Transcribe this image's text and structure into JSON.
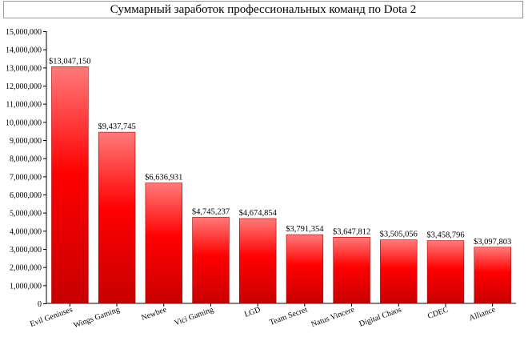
{
  "chart_data": {
    "type": "bar",
    "title": "Суммарный заработок профессиональных команд по Dota 2",
    "xlabel": "",
    "ylabel": "",
    "categories": [
      "Evil Geniuses",
      "Wings Gaming",
      "Newbee",
      "Vici Gaming",
      "LGD",
      "Team Secret",
      "Natus Vincere",
      "Digital Chaos",
      "CDEC",
      "Alliance"
    ],
    "values": [
      13047150,
      9437745,
      6636931,
      4745237,
      4674854,
      3791354,
      3647812,
      3505056,
      3458796,
      3097803
    ],
    "data_labels": [
      "$13,047,150",
      "$9,437,745",
      "$6,636,931",
      "$4,745,237",
      "$4,674,854",
      "$3,791,354",
      "$3,647,812",
      "$3,505,056",
      "$3,458,796",
      "$3,097,803"
    ],
    "ylim": [
      0,
      15000000
    ],
    "yticks": [
      0,
      1000000,
      2000000,
      3000000,
      4000000,
      5000000,
      6000000,
      7000000,
      8000000,
      9000000,
      10000000,
      11000000,
      12000000,
      13000000,
      14000000,
      15000000
    ],
    "ytick_labels": [
      "0",
      "1,000,000",
      "2,000,000",
      "3,000,000",
      "4,000,000",
      "5,000,000",
      "6,000,000",
      "7,000,000",
      "8,000,000",
      "9,000,000",
      "10,000,000",
      "11,000,000",
      "12,000,000",
      "13,000,000",
      "14,000,000",
      "15,000,000"
    ],
    "grid": false,
    "legend": "none",
    "bar_color_top": "#ff7a7a",
    "bar_color_mid": "#ff0000",
    "bar_color_bottom": "#c80000"
  }
}
